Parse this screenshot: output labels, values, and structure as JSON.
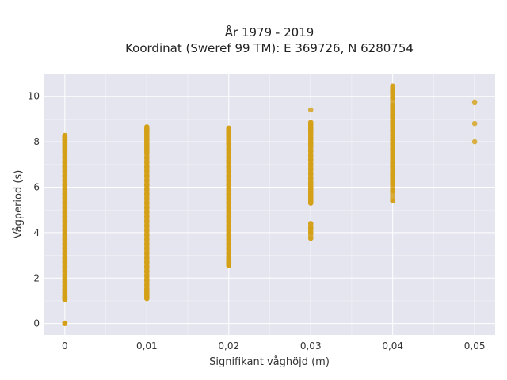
{
  "chart_data": {
    "type": "scatter",
    "title": "År 1979 - 2019",
    "subtitle": "Koordinat (Sweref 99 TM): E 369726, N 6280754",
    "xlabel": "Signifikant våghöjd (m)",
    "ylabel": "Vågperiod (s)",
    "xlim": [
      -0.0025,
      0.0525
    ],
    "ylim": [
      -0.5,
      11
    ],
    "x_ticks": [
      0,
      0.01,
      0.02,
      0.03,
      0.04,
      0.05
    ],
    "x_tick_labels": [
      "0",
      "0,01",
      "0,02",
      "0,03",
      "0,04",
      "0,05"
    ],
    "y_ticks": [
      0,
      2,
      4,
      6,
      8,
      10
    ],
    "y_tick_labels": [
      "0",
      "2",
      "4",
      "6",
      "8",
      "10"
    ],
    "grid": true,
    "colors": {
      "marker": "#d4a017",
      "plot_bg": "#e5e5ef",
      "grid": "#ffffff"
    },
    "series": [
      {
        "x": [
          0,
          0,
          0,
          0,
          0,
          0,
          0,
          0,
          0,
          0,
          0,
          0,
          0,
          0,
          0,
          0,
          0,
          0,
          0,
          0,
          0,
          0,
          0,
          0,
          0,
          0,
          0,
          0,
          0,
          0,
          0,
          0,
          0,
          0,
          0,
          0,
          0,
          0,
          0,
          0,
          0,
          0,
          0,
          0,
          0,
          0,
          0,
          0,
          0,
          0,
          0.01,
          0.01,
          0.01,
          0.01,
          0.01,
          0.01,
          0.01,
          0.01,
          0.01,
          0.01,
          0.01,
          0.01,
          0.01,
          0.01,
          0.01,
          0.01,
          0.01,
          0.01,
          0.01,
          0.01,
          0.01,
          0.01,
          0.01,
          0.01,
          0.01,
          0.01,
          0.01,
          0.01,
          0.01,
          0.01,
          0.01,
          0.01,
          0.01,
          0.01,
          0.01,
          0.01,
          0.01,
          0.01,
          0.01,
          0.01,
          0.01,
          0.01,
          0.01,
          0.01,
          0.01,
          0.01,
          0.01,
          0.01,
          0.01,
          0.01,
          0.02,
          0.02,
          0.02,
          0.02,
          0.02,
          0.02,
          0.02,
          0.02,
          0.02,
          0.02,
          0.02,
          0.02,
          0.02,
          0.02,
          0.02,
          0.02,
          0.02,
          0.02,
          0.02,
          0.02,
          0.02,
          0.02,
          0.02,
          0.02,
          0.02,
          0.02,
          0.02,
          0.02,
          0.02,
          0.02,
          0.02,
          0.02,
          0.02,
          0.02,
          0.02,
          0.02,
          0.02,
          0.02,
          0.02,
          0.03,
          0.03,
          0.03,
          0.03,
          0.03,
          0.03,
          0.03,
          0.03,
          0.03,
          0.03,
          0.03,
          0.03,
          0.03,
          0.03,
          0.03,
          0.03,
          0.03,
          0.03,
          0.03,
          0.03,
          0.03,
          0.03,
          0.03,
          0.03,
          0.03,
          0.03,
          0.03,
          0.03,
          0.03,
          0.03,
          0.03,
          0.03,
          0.03,
          0.03,
          0.04,
          0.04,
          0.04,
          0.04,
          0.04,
          0.04,
          0.04,
          0.04,
          0.04,
          0.04,
          0.04,
          0.04,
          0.04,
          0.04,
          0.04,
          0.04,
          0.04,
          0.04,
          0.04,
          0.04,
          0.04,
          0.04,
          0.04,
          0.04,
          0.04,
          0.04,
          0.04,
          0.04,
          0.04,
          0.04,
          0.05,
          0.05,
          0.05
        ],
        "y": [
          0,
          0.02,
          1.05,
          1.2,
          1.35,
          1.5,
          1.65,
          1.8,
          1.95,
          2.1,
          2.3,
          2.5,
          2.7,
          2.9,
          3.1,
          3.3,
          3.5,
          3.7,
          3.9,
          4.1,
          4.3,
          4.5,
          4.7,
          4.9,
          5.1,
          5.3,
          5.5,
          5.7,
          5.9,
          6.1,
          6.3,
          6.5,
          6.7,
          6.9,
          7.1,
          7.3,
          7.5,
          7.6,
          7.7,
          7.8,
          7.9,
          8.0,
          8.05,
          8.1,
          8.15,
          8.2,
          8.25,
          8.28,
          1.1,
          1.15,
          1.1,
          1.2,
          1.35,
          1.5,
          1.7,
          1.9,
          2.1,
          2.3,
          2.5,
          2.7,
          2.9,
          3.1,
          3.3,
          3.5,
          3.7,
          3.9,
          4.1,
          4.3,
          4.5,
          4.7,
          4.9,
          5.1,
          5.3,
          5.5,
          5.7,
          5.9,
          6.1,
          6.3,
          6.5,
          6.7,
          6.9,
          7.1,
          7.3,
          7.5,
          7.6,
          7.7,
          7.8,
          7.9,
          8.0,
          8.1,
          8.2,
          8.3,
          8.4,
          8.5,
          8.55,
          8.6,
          8.65,
          1.15,
          1.25,
          1.4,
          2.55,
          2.7,
          2.9,
          3.1,
          3.3,
          3.5,
          3.7,
          3.9,
          4.1,
          4.3,
          4.5,
          4.7,
          4.9,
          5.1,
          5.3,
          5.5,
          5.7,
          5.9,
          6.1,
          6.3,
          6.5,
          6.7,
          6.9,
          7.1,
          7.3,
          7.5,
          7.7,
          7.9,
          8.0,
          8.1,
          8.2,
          8.3,
          8.4,
          8.5,
          8.55,
          8.6,
          2.6,
          2.65,
          2.75,
          3.75,
          4.0,
          4.2,
          4.4,
          5.3,
          5.4,
          5.5,
          5.6,
          5.7,
          5.8,
          5.9,
          6.0,
          6.2,
          6.4,
          6.6,
          6.8,
          7.0,
          7.2,
          7.4,
          7.6,
          7.8,
          8.0,
          8.15,
          8.3,
          8.45,
          8.55,
          8.65,
          8.75,
          8.85,
          9.4,
          5.35,
          5.45,
          6.1,
          7.9,
          5.4,
          5.85,
          6.15,
          6.25,
          6.4,
          6.55,
          6.7,
          6.9,
          7.1,
          7.3,
          7.5,
          7.7,
          7.9,
          8.1,
          8.3,
          8.5,
          8.7,
          8.9,
          9.1,
          9.3,
          9.45,
          9.6,
          9.95,
          10.15,
          10.25,
          10.45,
          6.6,
          7.0,
          8.8,
          9.2,
          8.0,
          8.8,
          9.75
        ]
      }
    ]
  }
}
